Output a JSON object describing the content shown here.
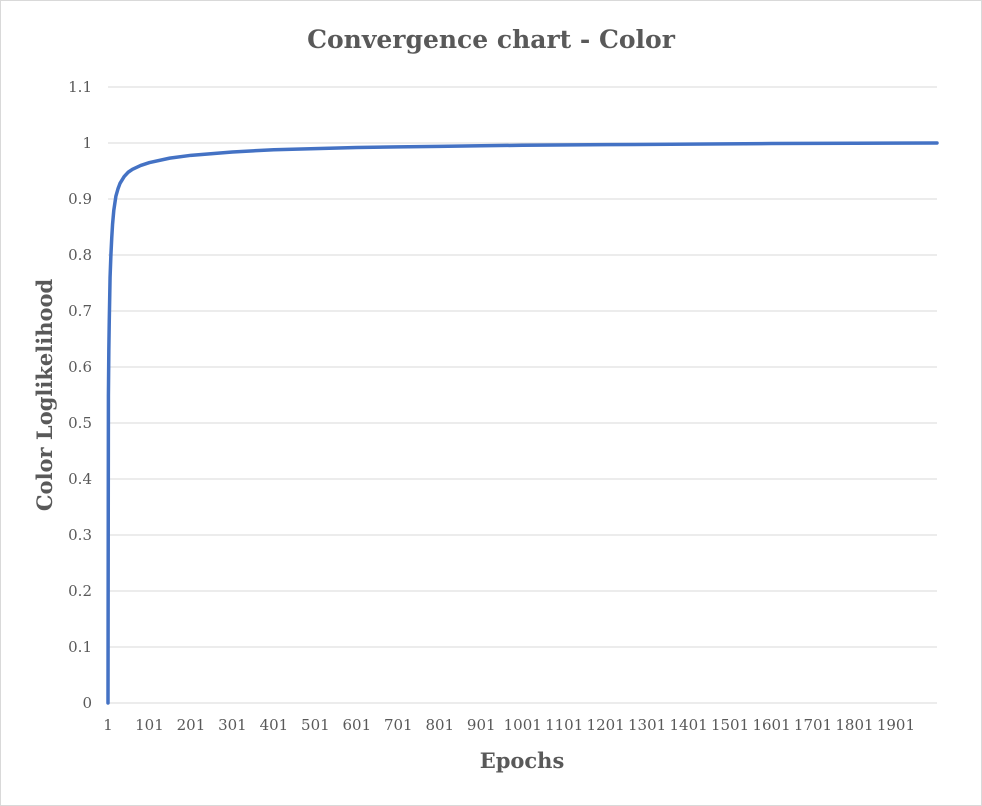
{
  "chart_data": {
    "type": "line",
    "title": "Convergence chart - Color",
    "xlabel": "Epochs",
    "ylabel": "Color Loglikelihood",
    "x_ticks": [
      "1",
      "101",
      "201",
      "301",
      "401",
      "501",
      "601",
      "701",
      "801",
      "901",
      "1001",
      "1101",
      "1201",
      "1301",
      "1401",
      "1501",
      "1601",
      "1701",
      "1801",
      "1901"
    ],
    "xlim": [
      1,
      2000
    ],
    "ylim": [
      0,
      1.1
    ],
    "y_ticks": [
      "0",
      "0.1",
      "0.2",
      "0.3",
      "0.4",
      "0.5",
      "0.6",
      "0.7",
      "0.8",
      "0.9",
      "1",
      "1.1"
    ],
    "grid": true,
    "legend": "none",
    "series_color": "#4472c4",
    "series": [
      {
        "x": [
          1,
          2,
          3,
          4,
          5,
          6,
          8,
          10,
          12,
          15,
          20,
          25,
          30,
          40,
          50,
          60,
          80,
          101,
          150,
          201,
          301,
          401,
          501,
          601,
          701,
          801,
          901,
          1001,
          1201,
          1401,
          1601,
          1801,
          2000
        ],
        "values": [
          0.0,
          0.55,
          0.63,
          0.68,
          0.72,
          0.76,
          0.8,
          0.83,
          0.855,
          0.88,
          0.905,
          0.918,
          0.928,
          0.94,
          0.948,
          0.953,
          0.96,
          0.965,
          0.973,
          0.978,
          0.984,
          0.988,
          0.99,
          0.992,
          0.993,
          0.994,
          0.995,
          0.996,
          0.997,
          0.998,
          0.999,
          0.9995,
          1.0
        ]
      }
    ]
  }
}
